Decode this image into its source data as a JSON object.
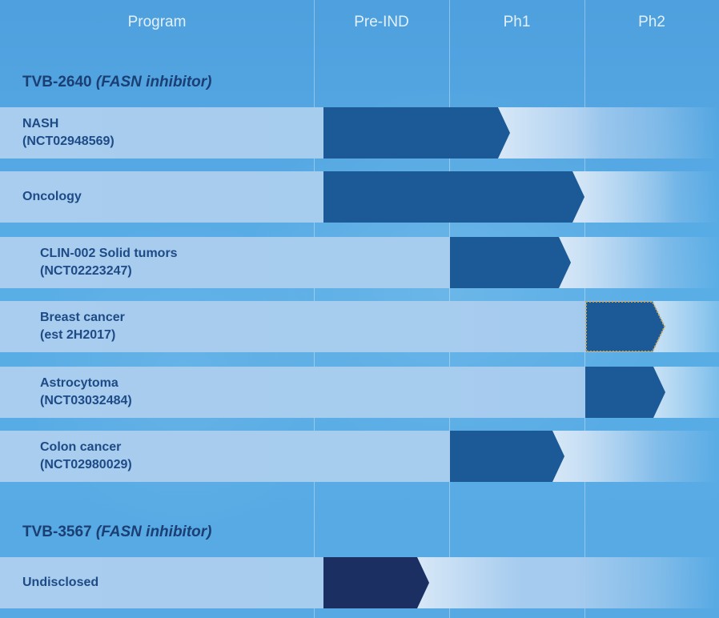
{
  "header": {
    "columns": [
      "Program",
      "Pre-IND",
      "Ph1",
      "Ph2"
    ]
  },
  "colors": {
    "background": "#56a9e3",
    "row_band": "#a5cbee",
    "bar_primary": "#1b5a97",
    "bar_undisclosed": "#1b2f63",
    "planned_outline": "#c9a45a",
    "label_text": "#1e4a86",
    "group_title": "#1b3e73"
  },
  "groups": [
    {
      "name": "TVB-2640",
      "subtitle": "(FASN inhibitor)",
      "rows": [
        {
          "lines": [
            "NASH",
            "(NCT02948569)"
          ],
          "indent": false,
          "stage_reached": "Ph1",
          "progress_within_stage": 0.45,
          "style": "solid"
        },
        {
          "lines": [
            "Oncology"
          ],
          "indent": false,
          "stage_reached": "Ph1",
          "progress_within_stage": 1.0,
          "style": "solid"
        },
        {
          "lines": [
            "CLIN-002 Solid tumors",
            "(NCT02223247)"
          ],
          "indent": true,
          "stage_reached": "Ph1",
          "progress_within_stage": 0.9,
          "bar_start_stage": "Ph1",
          "style": "solid"
        },
        {
          "lines": [
            "Breast cancer",
            "(est 2H2017)"
          ],
          "indent": true,
          "stage_reached": "Ph2",
          "progress_within_stage": 0.6,
          "bar_start_stage": "Ph2",
          "style": "planned"
        },
        {
          "lines": [
            "Astrocytoma",
            "(NCT03032484)"
          ],
          "indent": true,
          "stage_reached": "Ph2",
          "progress_within_stage": 0.6,
          "bar_start_stage": "Ph2",
          "style": "solid"
        },
        {
          "lines": [
            "Colon cancer",
            "(NCT02980029)"
          ],
          "indent": true,
          "stage_reached": "Ph1",
          "progress_within_stage": 0.85,
          "bar_start_stage": "Ph1",
          "style": "solid"
        }
      ]
    },
    {
      "name": "TVB-3567",
      "subtitle": "(FASN inhibitor)",
      "rows": [
        {
          "lines": [
            "Undisclosed"
          ],
          "indent": false,
          "stage_reached": "Pre-IND",
          "progress_within_stage": 0.85,
          "style": "undisclosed"
        }
      ]
    }
  ]
}
